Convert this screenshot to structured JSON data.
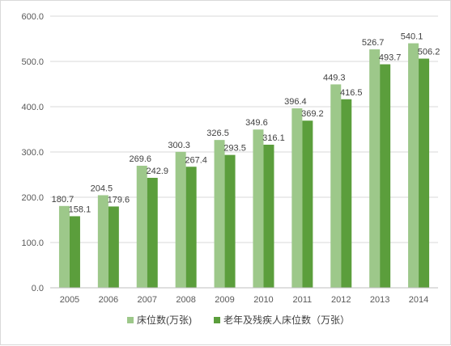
{
  "colors": {
    "series1": "#9dc88a",
    "series2": "#5b9e3c",
    "grid": "#d9d9d9",
    "axis": "#bfbfbf",
    "text": "#595959"
  },
  "chart_data": {
    "type": "bar",
    "categories": [
      "2005",
      "2006",
      "2007",
      "2008",
      "2009",
      "2010",
      "2011",
      "2012",
      "2013",
      "2014"
    ],
    "series": [
      {
        "name": "床位数(万张)",
        "values": [
          180.7,
          204.5,
          269.6,
          300.3,
          326.5,
          349.6,
          396.4,
          449.3,
          526.7,
          540.1
        ]
      },
      {
        "name": "老年及残疾人床位数（万张）",
        "values": [
          158.1,
          179.6,
          242.9,
          267.4,
          293.5,
          316.1,
          369.2,
          416.5,
          493.7,
          506.2
        ]
      }
    ],
    "ylim": [
      0,
      600
    ],
    "yticks": [
      "0.0",
      "100.0",
      "200.0",
      "300.0",
      "400.0",
      "500.0",
      "600.0"
    ],
    "grid": true,
    "legend_position": "bottom"
  }
}
